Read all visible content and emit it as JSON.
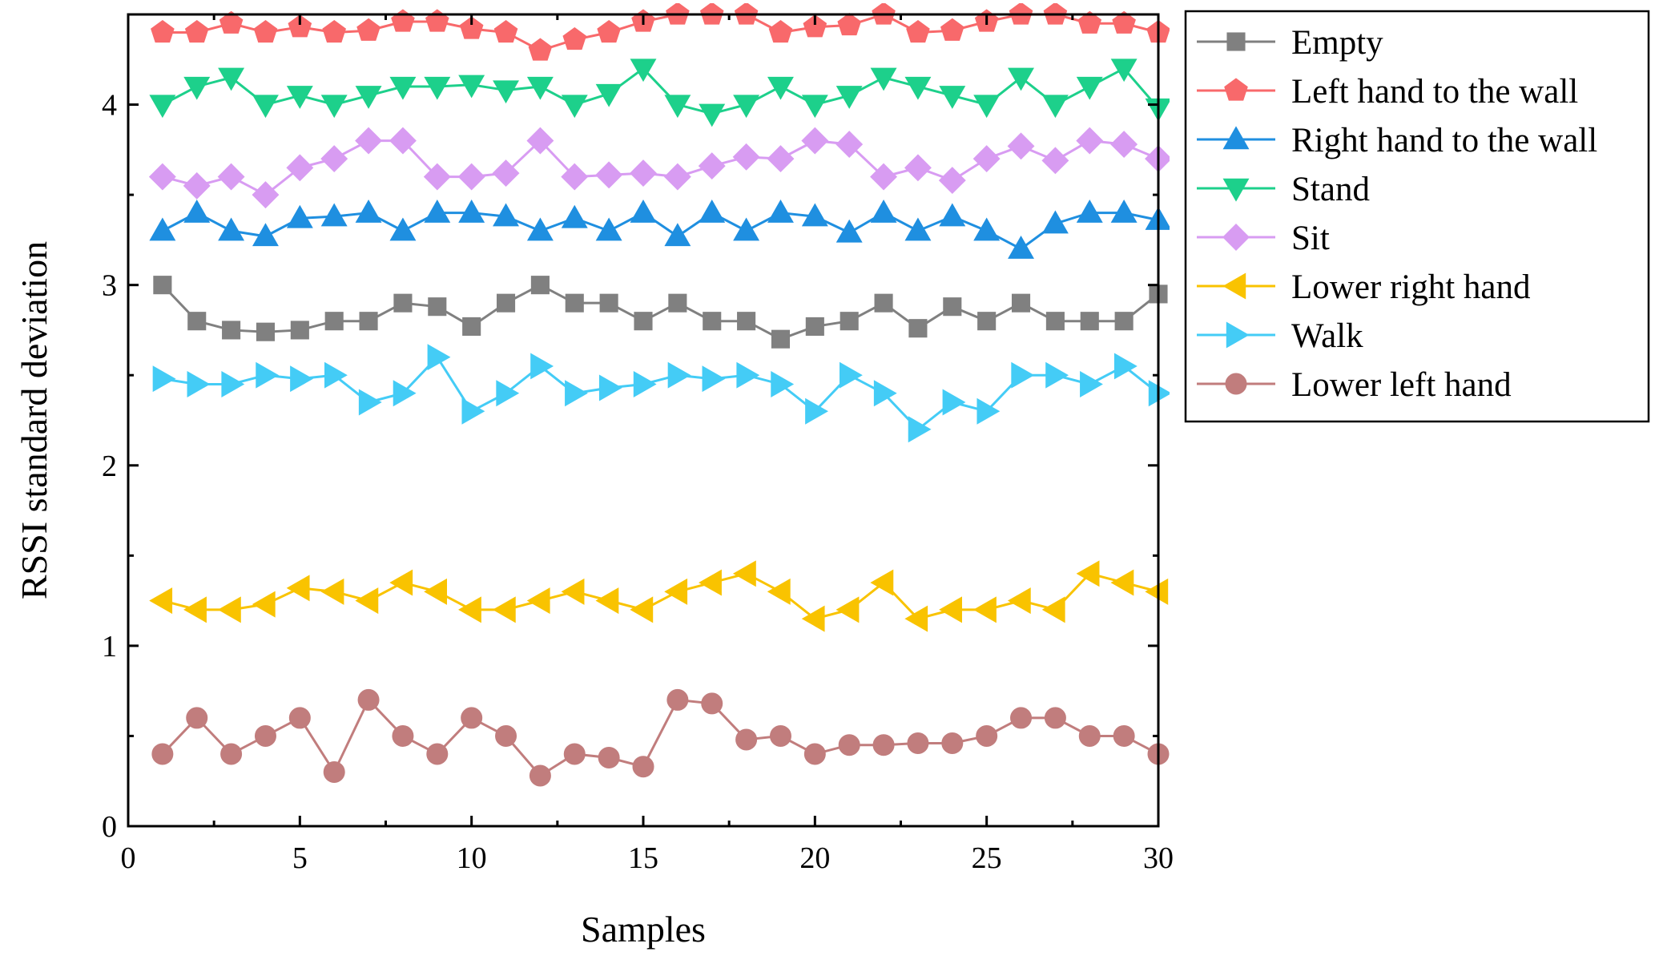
{
  "chart_data": {
    "type": "line",
    "title": "",
    "xlabel": "Samples",
    "ylabel": "RSSI standard deviation",
    "xlim": [
      0,
      30
    ],
    "ylim": [
      0,
      4.5
    ],
    "xticks": [
      0,
      5,
      10,
      15,
      20,
      25,
      30
    ],
    "yticks": [
      0,
      1,
      2,
      3,
      4
    ],
    "grid": false,
    "legend_position": "right-top-outside",
    "x": [
      1,
      2,
      3,
      4,
      5,
      6,
      7,
      8,
      9,
      10,
      11,
      12,
      13,
      14,
      15,
      16,
      17,
      18,
      19,
      20,
      21,
      22,
      23,
      24,
      25,
      26,
      27,
      28,
      29,
      30
    ],
    "series": [
      {
        "name": "Empty",
        "color": "#808080",
        "marker": "square",
        "values": [
          3.0,
          2.8,
          2.75,
          2.74,
          2.75,
          2.8,
          2.8,
          2.9,
          2.88,
          2.77,
          2.9,
          3.0,
          2.9,
          2.9,
          2.8,
          2.9,
          2.8,
          2.8,
          2.7,
          2.77,
          2.8,
          2.9,
          2.76,
          2.88,
          2.8,
          2.9,
          2.8,
          2.8,
          2.8,
          2.95
        ]
      },
      {
        "name": "Left hand to the wall",
        "color": "#f8696b",
        "marker": "pentagon",
        "values": [
          4.4,
          4.4,
          4.45,
          4.4,
          4.43,
          4.4,
          4.41,
          4.46,
          4.46,
          4.42,
          4.4,
          4.3,
          4.36,
          4.4,
          4.46,
          4.5,
          4.5,
          4.5,
          4.4,
          4.43,
          4.44,
          4.5,
          4.4,
          4.41,
          4.46,
          4.5,
          4.5,
          4.45,
          4.45,
          4.4
        ]
      },
      {
        "name": "Right hand to the wall",
        "color": "#1f8fe0",
        "marker": "triangle-up",
        "values": [
          3.3,
          3.4,
          3.3,
          3.27,
          3.37,
          3.38,
          3.4,
          3.3,
          3.4,
          3.4,
          3.38,
          3.3,
          3.37,
          3.3,
          3.4,
          3.27,
          3.4,
          3.3,
          3.4,
          3.38,
          3.29,
          3.4,
          3.3,
          3.38,
          3.3,
          3.2,
          3.34,
          3.4,
          3.4,
          3.36
        ]
      },
      {
        "name": "Stand",
        "color": "#1dd08b",
        "marker": "triangle-down",
        "values": [
          4.0,
          4.1,
          4.15,
          4.0,
          4.05,
          4.0,
          4.05,
          4.1,
          4.1,
          4.11,
          4.08,
          4.1,
          4.0,
          4.06,
          4.2,
          4.0,
          3.95,
          4.0,
          4.1,
          4.0,
          4.05,
          4.15,
          4.1,
          4.05,
          4.0,
          4.15,
          4.0,
          4.1,
          4.2,
          3.98
        ]
      },
      {
        "name": "Sit",
        "color": "#d89cf2",
        "marker": "diamond",
        "values": [
          3.6,
          3.55,
          3.6,
          3.5,
          3.65,
          3.7,
          3.8,
          3.8,
          3.6,
          3.6,
          3.62,
          3.8,
          3.6,
          3.61,
          3.62,
          3.6,
          3.66,
          3.71,
          3.7,
          3.8,
          3.78,
          3.6,
          3.65,
          3.58,
          3.7,
          3.77,
          3.69,
          3.8,
          3.78,
          3.7
        ]
      },
      {
        "name": "Lower right hand",
        "color": "#f9c300",
        "marker": "triangle-left",
        "values": [
          1.25,
          1.2,
          1.2,
          1.23,
          1.32,
          1.3,
          1.25,
          1.35,
          1.3,
          1.2,
          1.2,
          1.25,
          1.3,
          1.25,
          1.2,
          1.3,
          1.35,
          1.4,
          1.3,
          1.15,
          1.2,
          1.35,
          1.15,
          1.2,
          1.2,
          1.25,
          1.2,
          1.4,
          1.35,
          1.3
        ]
      },
      {
        "name": "Walk",
        "color": "#44ccf6",
        "marker": "triangle-right",
        "values": [
          2.48,
          2.45,
          2.45,
          2.5,
          2.48,
          2.5,
          2.35,
          2.4,
          2.6,
          2.3,
          2.4,
          2.55,
          2.4,
          2.43,
          2.45,
          2.5,
          2.48,
          2.5,
          2.45,
          2.3,
          2.5,
          2.4,
          2.2,
          2.35,
          2.3,
          2.5,
          2.5,
          2.45,
          2.55,
          2.4
        ]
      },
      {
        "name": "Lower left hand",
        "color": "#c17d7d",
        "marker": "circle",
        "values": [
          0.4,
          0.6,
          0.4,
          0.5,
          0.6,
          0.3,
          0.7,
          0.5,
          0.4,
          0.6,
          0.5,
          0.28,
          0.4,
          0.38,
          0.33,
          0.7,
          0.68,
          0.48,
          0.5,
          0.4,
          0.45,
          0.45,
          0.46,
          0.46,
          0.5,
          0.6,
          0.6,
          0.5,
          0.5,
          0.4
        ]
      }
    ]
  }
}
